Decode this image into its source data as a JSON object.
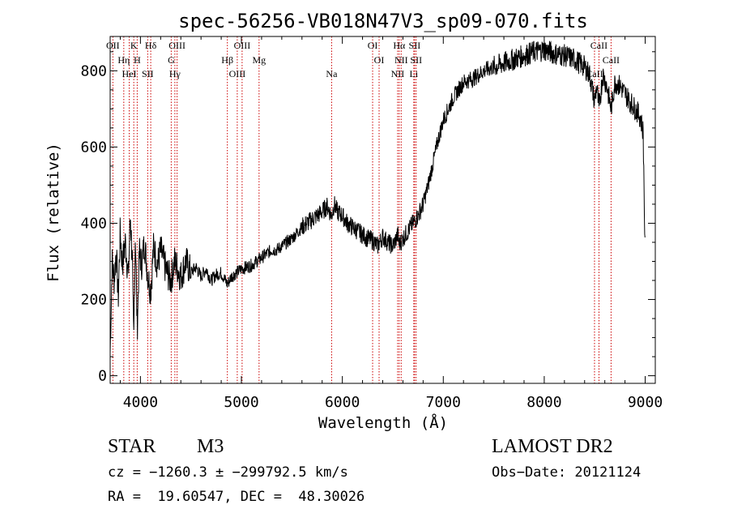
{
  "chart_data": {
    "type": "line",
    "title": "spec-56256-VB018N47V3_sp09-070.fits",
    "xlabel": "Wavelength (Å)",
    "ylabel": "Flux (relative)",
    "xlim": [
      3700,
      9100
    ],
    "ylim": [
      -20,
      890
    ],
    "xticks": [
      4000,
      5000,
      6000,
      7000,
      8000,
      9000
    ],
    "yticks": [
      0,
      200,
      400,
      600,
      800
    ],
    "grid": false,
    "series": [
      {
        "x": [
          3700,
          3720,
          3740,
          3760,
          3780,
          3800,
          3820,
          3850,
          3880,
          3900,
          3920,
          3933,
          3950,
          3968,
          3990,
          4010,
          4040,
          4070,
          4102,
          4130,
          4170,
          4200,
          4250,
          4300,
          4340,
          4400,
          4450,
          4500,
          4550,
          4600,
          4650,
          4700,
          4750,
          4800,
          4861,
          4900,
          4950,
          5000,
          5050,
          5100,
          5150,
          5200,
          5250,
          5300,
          5350,
          5400,
          5450,
          5500,
          5550,
          5600,
          5650,
          5700,
          5750,
          5800,
          5850,
          5893,
          5920,
          5950,
          6000,
          6050,
          6100,
          6150,
          6200,
          6250,
          6300,
          6350,
          6400,
          6450,
          6500,
          6550,
          6563,
          6600,
          6650,
          6700,
          6750,
          6800,
          6850,
          6900,
          6950,
          7000,
          7050,
          7100,
          7150,
          7200,
          7300,
          7400,
          7500,
          7600,
          7700,
          7800,
          7900,
          8000,
          8100,
          8200,
          8300,
          8400,
          8450,
          8498,
          8520,
          8542,
          8580,
          8620,
          8662,
          8700,
          8750,
          8800,
          8850,
          8900,
          8950,
          8980,
          9000
        ],
        "y": [
          60,
          300,
          250,
          330,
          200,
          380,
          290,
          350,
          260,
          420,
          300,
          80,
          380,
          120,
          330,
          290,
          350,
          270,
          220,
          340,
          290,
          330,
          280,
          250,
          300,
          260,
          300,
          270,
          285,
          260,
          280,
          250,
          265,
          270,
          240,
          260,
          270,
          280,
          285,
          290,
          300,
          310,
          320,
          330,
          330,
          340,
          350,
          360,
          375,
          390,
          400,
          410,
          420,
          430,
          445,
          420,
          450,
          430,
          420,
          400,
          390,
          380,
          370,
          360,
          355,
          340,
          365,
          350,
          340,
          370,
          345,
          360,
          380,
          400,
          420,
          450,
          500,
          560,
          620,
          670,
          700,
          730,
          750,
          770,
          780,
          800,
          810,
          820,
          830,
          840,
          850,
          855,
          845,
          840,
          830,
          810,
          790,
          720,
          760,
          700,
          790,
          760,
          700,
          770,
          760,
          740,
          720,
          700,
          680,
          640,
          300
        ]
      }
    ],
    "lines": [
      {
        "label": "OII",
        "x": 3727
      },
      {
        "label": "Hη",
        "x": 3835
      },
      {
        "label": "HeI",
        "x": 3889
      },
      {
        "label": "K",
        "x": 3934
      },
      {
        "label": "H",
        "x": 3968
      },
      {
        "label": "SII",
        "x": 4072
      },
      {
        "label": "Hδ",
        "x": 4102
      },
      {
        "label": "G",
        "x": 4305
      },
      {
        "label": "Hγ",
        "x": 4341
      },
      {
        "label": "OIII",
        "x": 4363
      },
      {
        "label": "Hβ",
        "x": 4861
      },
      {
        "label": "OIII",
        "x": 4959
      },
      {
        "label": "OIII",
        "x": 5007
      },
      {
        "label": "Mg",
        "x": 5175
      },
      {
        "label": "Na",
        "x": 5894
      },
      {
        "label": "OI",
        "x": 6300
      },
      {
        "label": "OI",
        "x": 6364
      },
      {
        "label": "NII",
        "x": 6548
      },
      {
        "label": "Hα",
        "x": 6563
      },
      {
        "label": "NII",
        "x": 6583
      },
      {
        "label": "Li",
        "x": 6708
      },
      {
        "label": "SII",
        "x": 6716
      },
      {
        "label": "SII",
        "x": 6731
      },
      {
        "label": "CaII",
        "x": 8498
      },
      {
        "label": "CaII",
        "x": 8542
      },
      {
        "label": "CaII",
        "x": 8662
      }
    ]
  },
  "info": {
    "class": "STAR",
    "subclass": "M3",
    "survey": "LAMOST DR2",
    "cz": "cz = −1260.3 ± −299792.5 km/s",
    "obs_date": "Obs−Date: 20121124",
    "radec": "RA =  19.60547, DEC =  48.30026"
  },
  "colors": {
    "spectrum": "#000000",
    "line_marker": "#cc0000",
    "axes": "#000000"
  }
}
